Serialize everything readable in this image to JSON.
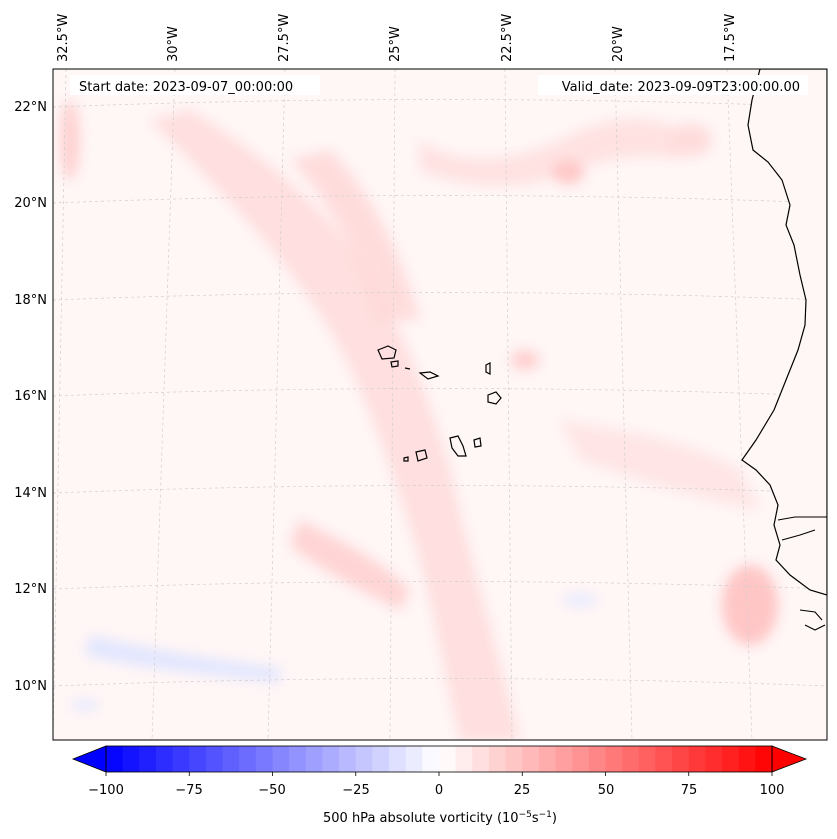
{
  "header": {
    "start_date": "Start date: 2023-09-07_00:00:00",
    "valid_date": "Valid_date: 2023-09-09T23:00:00.00"
  },
  "map": {
    "projection": "lambert-conformal",
    "lon_labels": [
      "32.5°W",
      "30°W",
      "27.5°W",
      "25°W",
      "22.5°W",
      "20°W",
      "17.5°W"
    ],
    "lat_labels": [
      "22°N",
      "20°N",
      "18°N",
      "16°N",
      "14°N",
      "12°N",
      "10°N"
    ],
    "gridlines": true,
    "features": [
      "Cape Verde islands",
      "West African coastline"
    ]
  },
  "colorbar": {
    "label_text": "500 hPa absolute vorticity (10",
    "label_exp1": "−5",
    "label_mid": "s",
    "label_exp2": "−1",
    "label_end": ")",
    "ticks": [
      "−100",
      "−75",
      "−50",
      "−25",
      "0",
      "25",
      "50",
      "75",
      "100"
    ],
    "range": [
      -100,
      100
    ],
    "colormap": "bwr",
    "extend": "both",
    "low_color": "#0000ff",
    "mid_color": "#ffffff",
    "high_color": "#ff0000"
  }
}
